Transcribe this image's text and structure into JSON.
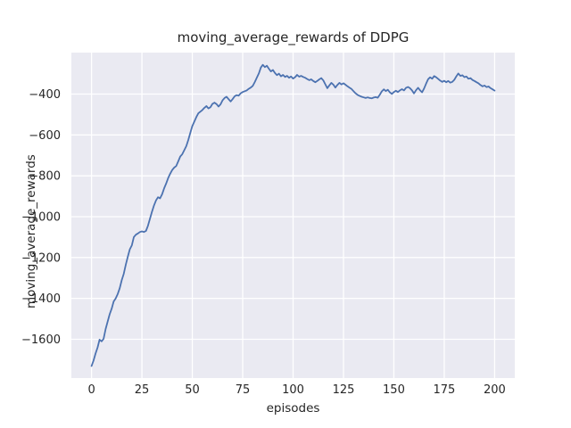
{
  "chart_data": {
    "type": "line",
    "title": "moving_average_rewards of DDPG",
    "xlabel": "episodes",
    "ylabel": "moving_average_rewards",
    "x_ticks": [
      0,
      25,
      50,
      75,
      100,
      125,
      150,
      175,
      200
    ],
    "y_ticks": [
      -400,
      -600,
      -800,
      -1000,
      -1200,
      -1400,
      -1600
    ],
    "xlim": [
      -10,
      210
    ],
    "ylim": [
      -1790,
      -197
    ],
    "grid": true,
    "legend_position": "none",
    "style": {
      "figure_background": "#ffffff",
      "plot_background": "#eaeaf2",
      "grid_color": "#ffffff",
      "text_color": "#262626",
      "line_color": "#4c72b0"
    },
    "series": [
      {
        "name": "moving_average_rewards",
        "color": "#4c72b0",
        "x_start": 0,
        "x_step": 1,
        "values": [
          -1731,
          -1705,
          -1670,
          -1640,
          -1602,
          -1610,
          -1598,
          -1550,
          -1513,
          -1478,
          -1450,
          -1415,
          -1400,
          -1378,
          -1350,
          -1310,
          -1280,
          -1235,
          -1195,
          -1160,
          -1140,
          -1100,
          -1088,
          -1082,
          -1075,
          -1072,
          -1075,
          -1070,
          -1045,
          -1010,
          -975,
          -945,
          -920,
          -905,
          -910,
          -890,
          -862,
          -838,
          -812,
          -790,
          -772,
          -760,
          -752,
          -730,
          -706,
          -694,
          -675,
          -655,
          -625,
          -590,
          -557,
          -535,
          -512,
          -494,
          -486,
          -478,
          -467,
          -459,
          -470,
          -464,
          -448,
          -442,
          -449,
          -461,
          -450,
          -431,
          -419,
          -413,
          -425,
          -436,
          -425,
          -411,
          -405,
          -408,
          -396,
          -390,
          -386,
          -382,
          -374,
          -368,
          -360,
          -341,
          -320,
          -299,
          -270,
          -257,
          -268,
          -261,
          -276,
          -289,
          -282,
          -297,
          -307,
          -300,
          -313,
          -306,
          -316,
          -311,
          -320,
          -314,
          -324,
          -317,
          -306,
          -315,
          -311,
          -316,
          -320,
          -326,
          -332,
          -328,
          -336,
          -342,
          -336,
          -328,
          -322,
          -333,
          -352,
          -371,
          -357,
          -345,
          -354,
          -368,
          -355,
          -345,
          -353,
          -347,
          -354,
          -362,
          -369,
          -375,
          -386,
          -396,
          -404,
          -409,
          -413,
          -416,
          -419,
          -416,
          -419,
          -421,
          -417,
          -415,
          -418,
          -404,
          -387,
          -377,
          -385,
          -379,
          -391,
          -399,
          -390,
          -384,
          -390,
          -382,
          -376,
          -382,
          -370,
          -365,
          -371,
          -382,
          -397,
          -381,
          -369,
          -381,
          -391,
          -373,
          -349,
          -327,
          -318,
          -325,
          -312,
          -318,
          -326,
          -334,
          -340,
          -335,
          -342,
          -336,
          -344,
          -340,
          -330,
          -313,
          -299,
          -311,
          -308,
          -317,
          -314,
          -325,
          -322,
          -331,
          -336,
          -342,
          -347,
          -356,
          -362,
          -358,
          -366,
          -363,
          -371,
          -377,
          -383
        ]
      }
    ]
  }
}
